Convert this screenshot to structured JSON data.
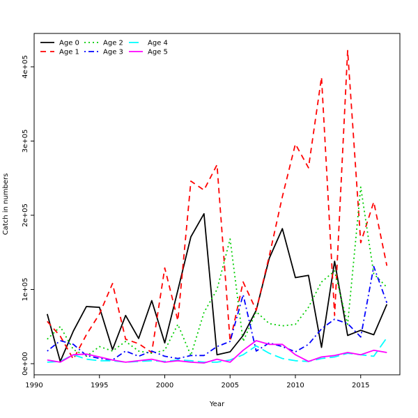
{
  "chart_data": {
    "type": "line",
    "title": "",
    "xlabel": "Year",
    "ylabel": "Catch in numbers",
    "xlim": [
      1990,
      2018
    ],
    "ylim": [
      -15000,
      445000
    ],
    "x_ticks": [
      1990,
      1995,
      2000,
      2005,
      2010,
      2015
    ],
    "y_ticks": [
      {
        "value": 0,
        "label": "0e+00"
      },
      {
        "value": 100000,
        "label": "1e+05"
      },
      {
        "value": 200000,
        "label": "2e+05"
      },
      {
        "value": 300000,
        "label": "3e+05"
      },
      {
        "value": 400000,
        "label": "4e+05"
      }
    ],
    "grid": false,
    "legend_position": "top-left",
    "x": [
      1991,
      1992,
      1993,
      1994,
      1995,
      1996,
      1997,
      1998,
      1999,
      2000,
      2001,
      2002,
      2003,
      2004,
      2005,
      2006,
      2007,
      2008,
      2009,
      2010,
      2011,
      2012,
      2013,
      2014,
      2015,
      2016,
      2017
    ],
    "series": [
      {
        "name": "Age 0",
        "color": "#000000",
        "dash": "solid",
        "values": [
          67000,
          3000,
          44000,
          77000,
          76000,
          19000,
          65000,
          34000,
          85000,
          28000,
          99000,
          171000,
          202000,
          12000,
          16000,
          38000,
          72000,
          142000,
          182000,
          116000,
          119000,
          22000,
          138000,
          38000,
          45000,
          39000,
          80000
        ]
      },
      {
        "name": "Age 1",
        "color": "#ff0000",
        "dash": "dashed",
        "values": [
          57000,
          37000,
          6000,
          39000,
          67000,
          108000,
          33000,
          27000,
          15000,
          129000,
          58000,
          246000,
          234000,
          268000,
          30000,
          110000,
          72000,
          145000,
          225000,
          296000,
          264000,
          386000,
          65000,
          422000,
          163000,
          218000,
          132000
        ]
      },
      {
        "name": "Age 2",
        "color": "#00cd00",
        "dash": "dotted",
        "values": [
          33000,
          50000,
          19000,
          10000,
          23000,
          17000,
          30000,
          17000,
          14000,
          18000,
          53000,
          11000,
          69000,
          100000,
          168000,
          30000,
          70000,
          54000,
          51000,
          53000,
          76000,
          110000,
          125000,
          53000,
          238000,
          121000,
          103000
        ]
      },
      {
        "name": "Age 3",
        "color": "#0000ff",
        "dash": "dashdot",
        "values": [
          17000,
          31000,
          26000,
          11000,
          7000,
          5000,
          17000,
          10000,
          17000,
          10000,
          7000,
          11000,
          11000,
          23000,
          30000,
          93000,
          17000,
          28000,
          23000,
          16000,
          26000,
          47000,
          60000,
          54000,
          36000,
          131000,
          82000
        ]
      },
      {
        "name": "Age 4",
        "color": "#00ffff",
        "dash": "longdash",
        "values": [
          2000,
          3000,
          12000,
          6000,
          4000,
          4000,
          2000,
          3000,
          4000,
          3000,
          5000,
          4000,
          2000,
          2000,
          5000,
          12000,
          24000,
          14000,
          7000,
          4000,
          3000,
          7000,
          9000,
          14000,
          12000,
          10000,
          35000
        ]
      },
      {
        "name": "Age 5",
        "color": "#ff00ff",
        "dash": "solid",
        "values": [
          5000,
          2000,
          12000,
          13000,
          9000,
          5000,
          2000,
          4000,
          6000,
          2000,
          4000,
          2000,
          1000,
          6000,
          2000,
          18000,
          31000,
          26000,
          26000,
          12000,
          3000,
          9000,
          11000,
          15000,
          12000,
          18000,
          15000
        ]
      }
    ]
  }
}
